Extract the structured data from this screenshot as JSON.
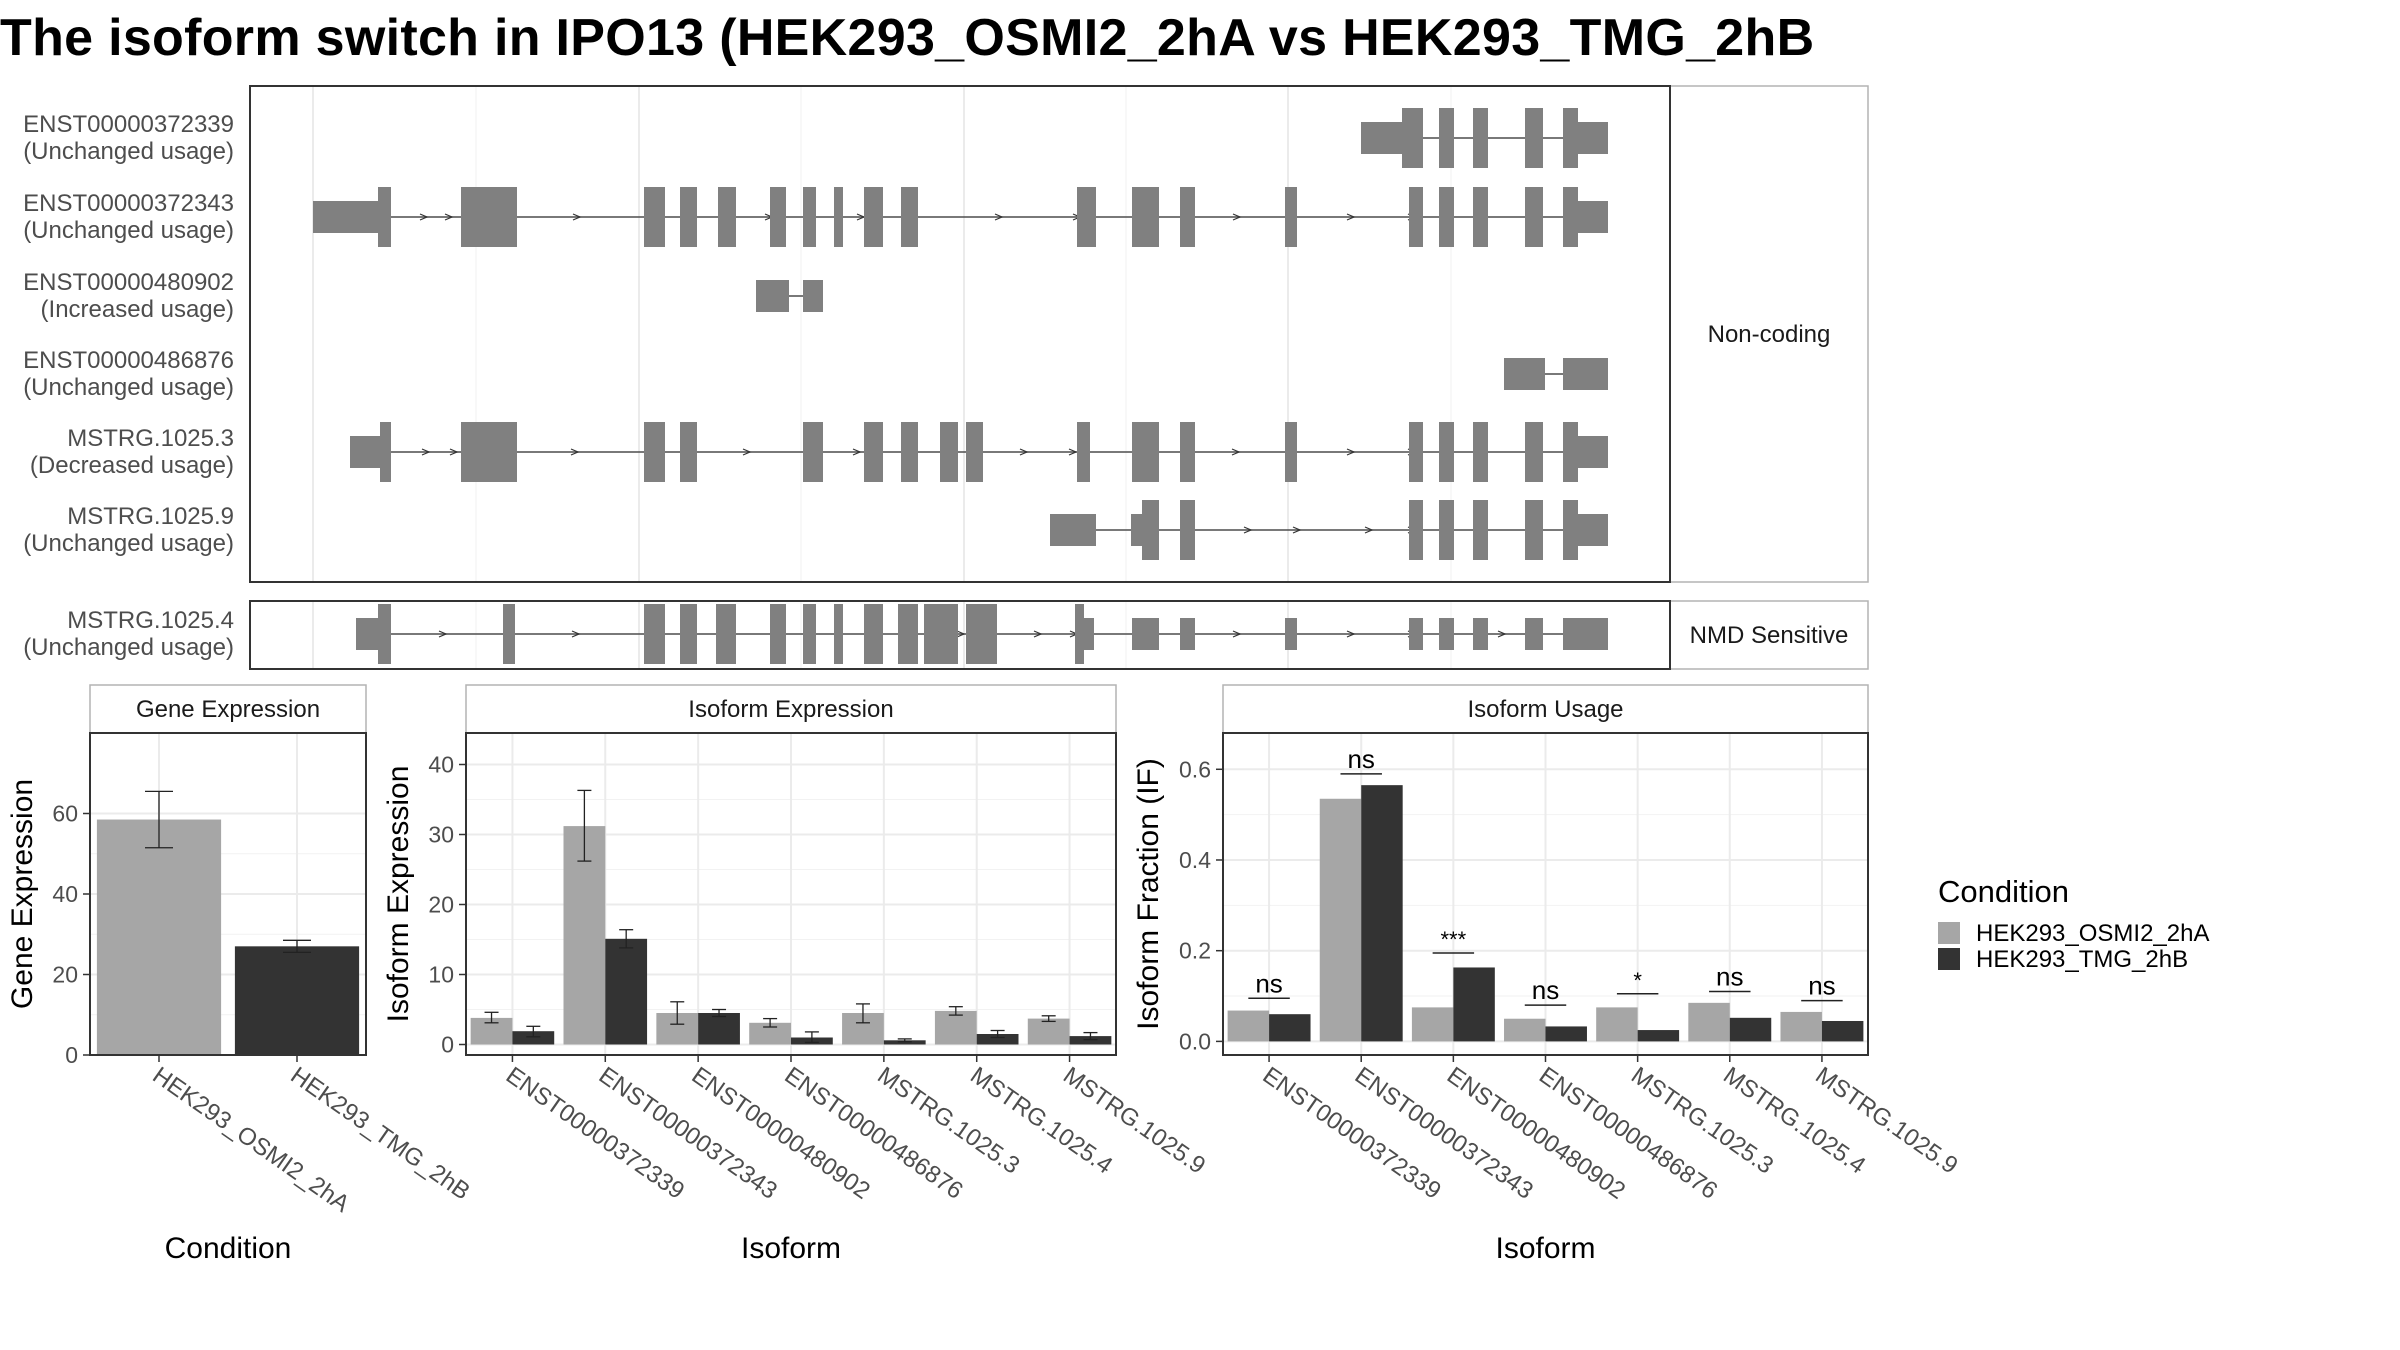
{
  "title": "The isoform switch in IPO13 (HEK293_OSMI2_2hA vs HEK293_TMG_2hB",
  "colors": {
    "exon": "#808080",
    "panel_border": "#333333",
    "grid": "#ebebeb",
    "strip_border": "#b3b3b3",
    "cond_A": "#a6a6a6",
    "cond_B": "#333333"
  },
  "chart_data": [
    {
      "type": "transcript-structure",
      "facets": [
        "Non-coding",
        "NMD Sensitive"
      ],
      "transcripts": [
        {
          "id": "ENST00000372339",
          "usage": "(Unchanged usage)",
          "facet": "Non-coding"
        },
        {
          "id": "ENST00000372343",
          "usage": "(Unchanged usage)",
          "facet": "Non-coding"
        },
        {
          "id": "ENST00000480902",
          "usage": "(Increased usage)",
          "facet": "Non-coding"
        },
        {
          "id": "ENST00000486876",
          "usage": "(Unchanged usage)",
          "facet": "Non-coding"
        },
        {
          "id": "MSTRG.1025.3",
          "usage": "(Decreased usage)",
          "facet": "Non-coding"
        },
        {
          "id": "MSTRG.1025.9",
          "usage": "(Unchanged usage)",
          "facet": "Non-coding"
        },
        {
          "id": "MSTRG.1025.4",
          "usage": "(Unchanged usage)",
          "facet": "NMD Sensitive"
        }
      ]
    },
    {
      "type": "bar",
      "title": "Gene Expression",
      "xlabel": "Condition",
      "ylabel": "Gene Expression",
      "ylim": [
        0,
        80
      ],
      "yticks": [
        0,
        20,
        40,
        60
      ],
      "categories": [
        "HEK293_OSMI2_2hA",
        "HEK293_TMG_2hB"
      ],
      "values": [
        58.5,
        27
      ],
      "errors": [
        [
          51.5,
          65.5
        ],
        [
          25.5,
          28.5
        ]
      ]
    },
    {
      "type": "bar",
      "title": "Isoform Expression",
      "xlabel": "Isoform",
      "ylabel": "Isoform Expression",
      "ylim": [
        -1.5,
        44.5
      ],
      "yticks": [
        0,
        10,
        20,
        30,
        40
      ],
      "categories": [
        "ENST00000372339",
        "ENST00000372343",
        "ENST00000480902",
        "ENST00000486876",
        "MSTRG.1025.3",
        "MSTRG.1025.4",
        "MSTRG.1025.9"
      ],
      "series": [
        {
          "name": "HEK293_OSMI2_2hA",
          "values": [
            3.8,
            31.2,
            4.5,
            3.1,
            4.5,
            4.8,
            3.7
          ],
          "errors": [
            [
              3.1,
              4.6
            ],
            [
              26.2,
              36.3
            ],
            [
              2.9,
              6.1
            ],
            [
              2.5,
              3.7
            ],
            [
              3.1,
              5.8
            ],
            [
              4.2,
              5.4
            ],
            [
              3.3,
              4.1
            ]
          ]
        },
        {
          "name": "HEK293_TMG_2hB",
          "values": [
            1.9,
            15.1,
            4.5,
            1.0,
            0.6,
            1.5,
            1.2
          ],
          "errors": [
            [
              1.1,
              2.6
            ],
            [
              13.8,
              16.4
            ],
            [
              4.0,
              5.0
            ],
            [
              0.3,
              1.8
            ],
            [
              0.4,
              0.8
            ],
            [
              1.0,
              2.0
            ],
            [
              0.7,
              1.7
            ]
          ]
        }
      ]
    },
    {
      "type": "bar",
      "title": "Isoform Usage",
      "xlabel": "Isoform",
      "ylabel": "Isoform Fraction (IF)",
      "ylim": [
        -0.03,
        0.68
      ],
      "yticks": [
        "0.0",
        "0.2",
        "0.4",
        "0.6"
      ],
      "categories": [
        "ENST00000372339",
        "ENST00000372343",
        "ENST00000480902",
        "ENST00000486876",
        "MSTRG.1025.3",
        "MSTRG.1025.4",
        "MSTRG.1025.9"
      ],
      "series": [
        {
          "name": "HEK293_OSMI2_2hA",
          "values": [
            0.068,
            0.535,
            0.075,
            0.05,
            0.075,
            0.085,
            0.065
          ]
        },
        {
          "name": "HEK293_TMG_2hB",
          "values": [
            0.06,
            0.565,
            0.163,
            0.033,
            0.025,
            0.052,
            0.045
          ]
        }
      ],
      "significance": [
        "ns",
        "ns",
        "***",
        "ns",
        "*",
        "ns",
        "ns"
      ],
      "sig_line_y": [
        0.095,
        0.59,
        0.195,
        0.08,
        0.105,
        0.11,
        0.09
      ]
    }
  ],
  "legend": {
    "title": "Condition",
    "items": [
      {
        "label": "HEK293_OSMI2_2hA",
        "color": "#a6a6a6"
      },
      {
        "label": "HEK293_TMG_2hB",
        "color": "#333333"
      }
    ]
  }
}
